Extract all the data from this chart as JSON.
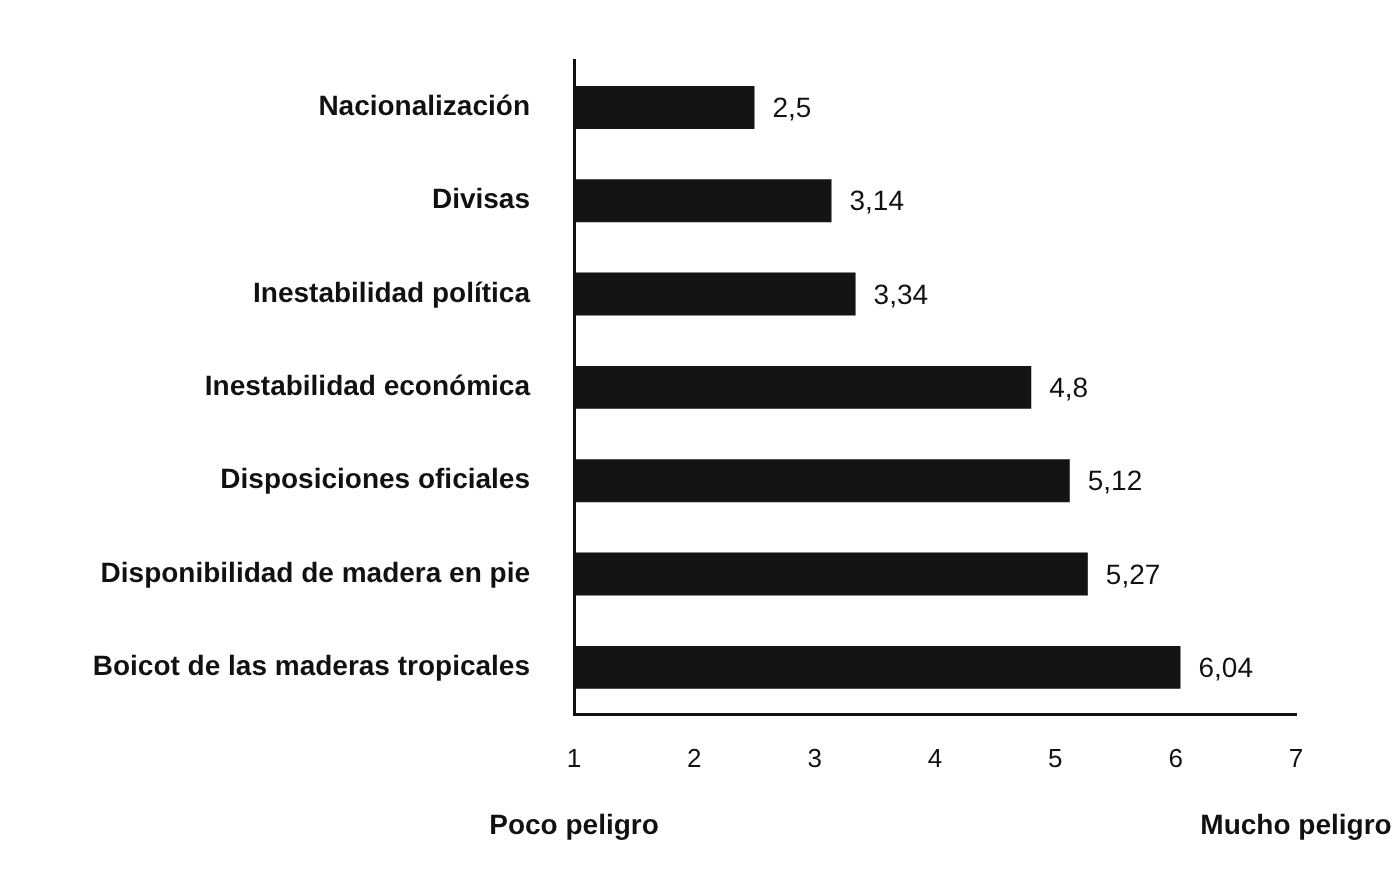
{
  "chart_data": {
    "type": "bar",
    "orientation": "horizontal",
    "categories": [
      "Nacionalización",
      "Divisas",
      "Inestabilidad política",
      "Inestabilidad económica",
      "Disposiciones oficiales",
      "Disponibilidad de madera en pie",
      "Boicot de las maderas tropicales"
    ],
    "values": [
      2.5,
      3.14,
      3.34,
      4.8,
      5.12,
      5.27,
      6.04
    ],
    "value_labels": [
      "2,5",
      "3,14",
      "3,34",
      "4,8",
      "5,12",
      "5,27",
      "6,04"
    ],
    "color": "#141414",
    "xlim": [
      1,
      7
    ],
    "xticks": [
      1,
      2,
      3,
      4,
      5,
      6,
      7
    ],
    "annotations": [
      "Poco peligro",
      "Mucho peligro"
    ]
  }
}
